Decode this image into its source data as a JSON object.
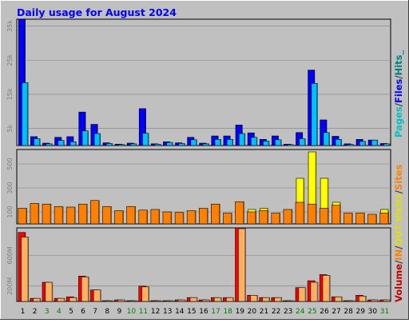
{
  "title": "Daily usage for August 2024",
  "colors": {
    "background": "#C0C0C0",
    "panel": "#C0C0C0",
    "title": "#0000FF",
    "hits": "#0000FF",
    "files": "#00C0FF",
    "pages": "#00C0C0",
    "sites": "#FF8000",
    "visits": "#FFFF00",
    "volume": "#FF0000",
    "in": "#FFB060",
    "out": "#FFFF00",
    "grid": "#808080"
  },
  "legend": {
    "hits_panel": {
      "pages": "Pages",
      "sep1": "/",
      "files": "Files",
      "sep2": "/",
      "hits": "Hits",
      "tail": "_"
    },
    "visits_panel": {
      "visits": "Visits",
      "sep": "/",
      "sites": "Sites"
    },
    "volume_panel": {
      "volume": "Volume",
      "sep1": "/",
      "in": "IN",
      "sep2": "/",
      "out": "OUT"
    }
  },
  "chart_data": [
    {
      "type": "bar",
      "panel": "hits",
      "categories": [
        "1",
        "2",
        "3",
        "4",
        "5",
        "6",
        "7",
        "8",
        "9",
        "10",
        "11",
        "12",
        "13",
        "14",
        "15",
        "16",
        "17",
        "18",
        "19",
        "20",
        "21",
        "22",
        "23",
        "24",
        "25",
        "26",
        "27",
        "28",
        "29",
        "30",
        "31"
      ],
      "weekend_days": [
        "3",
        "4",
        "10",
        "11",
        "17",
        "18",
        "24",
        "25",
        "31"
      ],
      "ytick_labels": [
        "5k",
        "15k",
        "25k",
        "35k"
      ],
      "ytick_values": [
        5000,
        15000,
        25000,
        35000
      ],
      "ylim": [
        0,
        37000
      ],
      "series": [
        {
          "key": "hits",
          "values": [
            37000,
            2600,
            700,
            2400,
            2600,
            9800,
            6200,
            800,
            400,
            700,
            10800,
            500,
            1100,
            800,
            2400,
            700,
            2800,
            2800,
            6000,
            3700,
            1800,
            2800,
            400,
            3800,
            22100,
            7500,
            2700,
            500,
            1800,
            1600,
            600
          ]
        },
        {
          "key": "files",
          "values": [
            18400,
            2000,
            500,
            1500,
            1100,
            4300,
            3500,
            600,
            300,
            500,
            3600,
            400,
            900,
            600,
            1700,
            500,
            1800,
            1800,
            3500,
            2400,
            1300,
            1700,
            300,
            2000,
            18200,
            3800,
            1800,
            300,
            1200,
            1600,
            500
          ]
        },
        {
          "key": "pages",
          "values": [
            0,
            0,
            0,
            0,
            0,
            0,
            0,
            0,
            0,
            0,
            0,
            0,
            0,
            0,
            0,
            0,
            0,
            0,
            0,
            0,
            0,
            0,
            0,
            0,
            0,
            0,
            0,
            0,
            0,
            0,
            0
          ]
        }
      ]
    },
    {
      "type": "bar",
      "panel": "visits",
      "categories": [
        "1",
        "2",
        "3",
        "4",
        "5",
        "6",
        "7",
        "8",
        "9",
        "10",
        "11",
        "12",
        "13",
        "14",
        "15",
        "16",
        "17",
        "18",
        "19",
        "20",
        "21",
        "22",
        "23",
        "24",
        "25",
        "26",
        "27",
        "28",
        "29",
        "30",
        "31"
      ],
      "ytick_labels": [
        "100",
        "300",
        "500"
      ],
      "ytick_values": [
        100,
        300,
        500
      ],
      "ylim": [
        0,
        620
      ],
      "series": [
        {
          "key": "visits",
          "values": [
            0,
            0,
            0,
            0,
            0,
            0,
            0,
            0,
            0,
            0,
            0,
            0,
            0,
            0,
            0,
            0,
            0,
            0,
            0,
            120,
            130,
            0,
            110,
            380,
            600,
            380,
            180,
            0,
            0,
            0,
            120
          ]
        },
        {
          "key": "sites",
          "values": [
            130,
            170,
            165,
            145,
            140,
            165,
            195,
            145,
            110,
            145,
            115,
            120,
            100,
            95,
            110,
            130,
            165,
            90,
            185,
            100,
            110,
            90,
            120,
            180,
            165,
            130,
            155,
            90,
            90,
            80,
            90
          ]
        }
      ]
    },
    {
      "type": "bar",
      "panel": "volume",
      "categories": [
        "1",
        "2",
        "3",
        "4",
        "5",
        "6",
        "7",
        "8",
        "9",
        "10",
        "11",
        "12",
        "13",
        "14",
        "15",
        "16",
        "17",
        "18",
        "19",
        "20",
        "21",
        "22",
        "23",
        "24",
        "25",
        "26",
        "27",
        "28",
        "29",
        "30",
        "31"
      ],
      "ytick_labels": [
        "200M",
        "600M"
      ],
      "ytick_values": [
        200,
        600
      ],
      "ylim": [
        0,
        960
      ],
      "series": [
        {
          "key": "volume",
          "values": [
            900,
            40,
            250,
            40,
            60,
            330,
            150,
            10,
            20,
            10,
            200,
            10,
            10,
            20,
            50,
            20,
            50,
            50,
            960,
            80,
            50,
            50,
            10,
            180,
            270,
            350,
            60,
            10,
            80,
            20,
            20
          ]
        },
        {
          "key": "in",
          "values": [
            840,
            40,
            250,
            40,
            50,
            320,
            150,
            10,
            20,
            10,
            190,
            10,
            10,
            20,
            50,
            20,
            50,
            50,
            950,
            80,
            50,
            50,
            10,
            180,
            250,
            340,
            60,
            10,
            70,
            20,
            20
          ]
        },
        {
          "key": "out",
          "values": [
            0,
            0,
            0,
            0,
            0,
            0,
            0,
            0,
            0,
            0,
            0,
            0,
            0,
            0,
            0,
            0,
            0,
            0,
            0,
            0,
            0,
            0,
            0,
            0,
            0,
            0,
            0,
            0,
            0,
            0,
            0
          ]
        }
      ]
    }
  ]
}
